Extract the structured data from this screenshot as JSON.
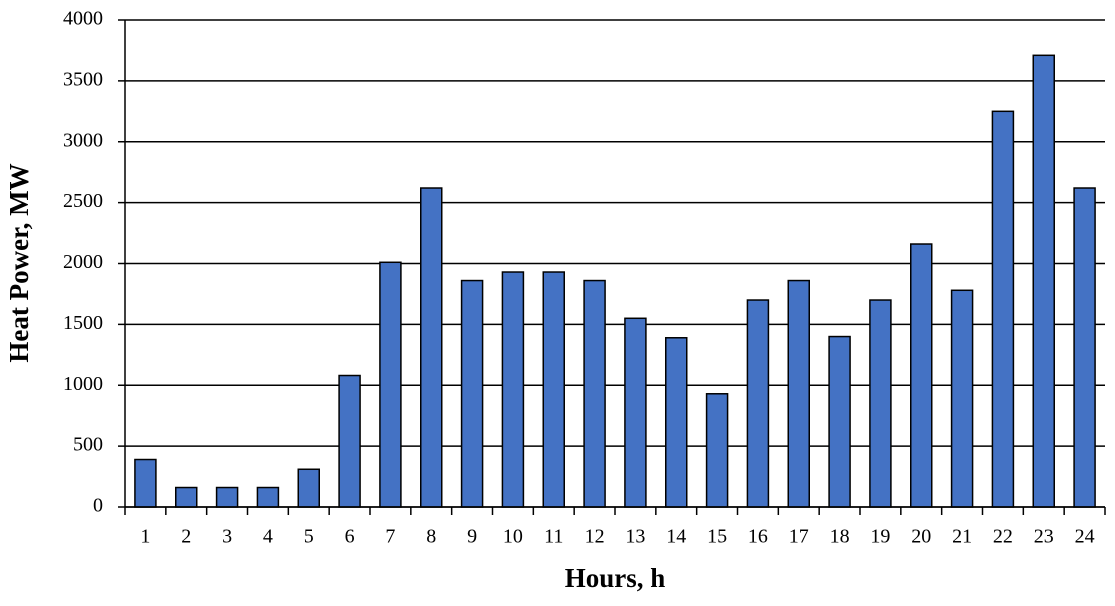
{
  "chart_data": {
    "type": "bar",
    "xlabel": "Hours, h",
    "ylabel": "Heat Power, MW",
    "categories": [
      "1",
      "2",
      "3",
      "4",
      "5",
      "6",
      "7",
      "8",
      "9",
      "10",
      "11",
      "12",
      "13",
      "14",
      "15",
      "16",
      "17",
      "18",
      "19",
      "20",
      "21",
      "22",
      "23",
      "24"
    ],
    "values": [
      390,
      160,
      160,
      160,
      310,
      1080,
      2010,
      2620,
      1860,
      1930,
      1930,
      1860,
      1550,
      1390,
      930,
      1700,
      1860,
      1400,
      1700,
      2160,
      1780,
      3250,
      3710,
      2620
    ],
    "color": "#4472c4",
    "ylim": [
      0,
      4000
    ],
    "yticks": [
      0,
      500,
      1000,
      1500,
      2000,
      2500,
      3000,
      3500,
      4000
    ],
    "grid": true
  }
}
